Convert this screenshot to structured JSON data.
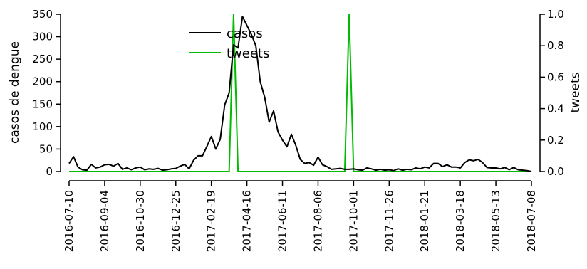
{
  "chart_data": {
    "type": "line",
    "ylabel_left": "casos de dengue",
    "ylabel_right": "tweets",
    "xlim": [
      "2016-07-10",
      "2018-07-08"
    ],
    "ylim_left": [
      0,
      350
    ],
    "ylim_right": [
      0,
      1.0
    ],
    "left_ticks": [
      0,
      50,
      100,
      150,
      200,
      250,
      300,
      350
    ],
    "right_ticks": [
      "0.0",
      "0.2",
      "0.4",
      "0.6",
      "0.8",
      "1.0"
    ],
    "x_tick_labels": [
      "2016-07-10",
      "2016-09-04",
      "2016-10-30",
      "2016-12-25",
      "2017-02-19",
      "2017-04-16",
      "2017-06-11",
      "2017-08-06",
      "2017-10-01",
      "2017-11-26",
      "2018-01-21",
      "2018-03-18",
      "2018-05-13",
      "2018-07-08"
    ],
    "legend": {
      "position": "top-center"
    },
    "colors": {
      "casos": "#000000",
      "tweets": "#00bb00"
    },
    "series": [
      {
        "name": "casos",
        "axis": "left",
        "x": [
          "2016-07-10",
          "2016-07-17",
          "2016-07-24",
          "2016-07-31",
          "2016-08-07",
          "2016-08-14",
          "2016-08-21",
          "2016-08-28",
          "2016-09-04",
          "2016-09-11",
          "2016-09-18",
          "2016-09-25",
          "2016-10-02",
          "2016-10-09",
          "2016-10-16",
          "2016-10-23",
          "2016-10-30",
          "2016-11-06",
          "2016-11-13",
          "2016-11-20",
          "2016-11-27",
          "2016-12-04",
          "2016-12-11",
          "2016-12-18",
          "2016-12-25",
          "2017-01-01",
          "2017-01-08",
          "2017-01-15",
          "2017-01-22",
          "2017-01-29",
          "2017-02-05",
          "2017-02-12",
          "2017-02-19",
          "2017-02-26",
          "2017-03-05",
          "2017-03-12",
          "2017-03-19",
          "2017-03-26",
          "2017-04-02",
          "2017-04-09",
          "2017-04-16",
          "2017-04-23",
          "2017-04-30",
          "2017-05-07",
          "2017-05-14",
          "2017-05-21",
          "2017-05-28",
          "2017-06-04",
          "2017-06-11",
          "2017-06-18",
          "2017-06-25",
          "2017-07-02",
          "2017-07-09",
          "2017-07-16",
          "2017-07-23",
          "2017-07-30",
          "2017-08-06",
          "2017-08-13",
          "2017-08-20",
          "2017-08-27",
          "2017-09-03",
          "2017-09-10",
          "2017-09-17",
          "2017-09-24",
          "2017-10-01",
          "2017-10-08",
          "2017-10-15",
          "2017-10-22",
          "2017-10-29",
          "2017-11-05",
          "2017-11-12",
          "2017-11-19",
          "2017-11-26",
          "2017-12-03",
          "2017-12-10",
          "2017-12-17",
          "2017-12-24",
          "2017-12-31",
          "2018-01-07",
          "2018-01-14",
          "2018-01-21",
          "2018-01-28",
          "2018-02-04",
          "2018-02-11",
          "2018-02-18",
          "2018-02-25",
          "2018-03-04",
          "2018-03-11",
          "2018-03-18",
          "2018-03-25",
          "2018-04-01",
          "2018-04-08",
          "2018-04-15",
          "2018-04-22",
          "2018-04-29",
          "2018-05-06",
          "2018-05-13",
          "2018-05-20",
          "2018-05-27",
          "2018-06-03",
          "2018-06-10",
          "2018-06-17",
          "2018-06-24",
          "2018-07-01",
          "2018-07-08"
        ],
        "values": [
          18,
          33,
          10,
          4,
          3,
          16,
          8,
          10,
          15,
          16,
          12,
          18,
          5,
          8,
          4,
          8,
          10,
          4,
          6,
          5,
          7,
          3,
          4,
          6,
          7,
          12,
          16,
          6,
          25,
          35,
          35,
          56,
          78,
          50,
          72,
          148,
          175,
          282,
          275,
          345,
          325,
          305,
          280,
          200,
          165,
          110,
          135,
          88,
          70,
          55,
          83,
          58,
          27,
          18,
          20,
          14,
          32,
          15,
          11,
          5,
          6,
          7,
          5,
          5,
          6,
          4,
          3,
          8,
          6,
          3,
          5,
          3,
          4,
          2,
          6,
          3,
          5,
          4,
          8,
          6,
          10,
          8,
          18,
          18,
          11,
          15,
          10,
          10,
          8,
          20,
          26,
          24,
          27,
          20,
          9,
          8,
          8,
          6,
          9,
          4,
          9,
          4,
          3,
          2,
          0
        ]
      },
      {
        "name": "tweets",
        "axis": "right",
        "x": [
          "2016-07-10",
          "2017-03-19",
          "2017-03-26",
          "2017-04-02",
          "2017-09-17",
          "2017-09-24",
          "2017-10-01",
          "2018-07-08"
        ],
        "values": [
          0,
          0,
          1,
          0,
          0,
          1,
          0,
          0
        ]
      }
    ]
  }
}
